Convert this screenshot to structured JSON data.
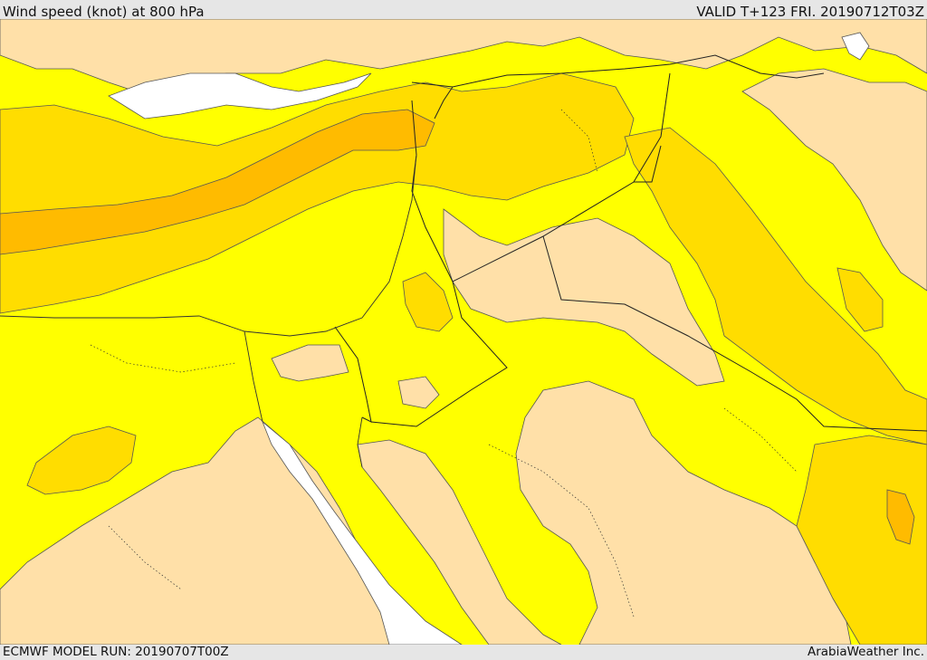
{
  "header": {
    "title": "Wind speed (knot) at 800 hPa",
    "valid": "VALID T+123 FRI. 20190712T03Z"
  },
  "footer": {
    "model_run": "ECMWF MODEL RUN: 20190707T00Z",
    "credit": "ArabiaWeather Inc."
  },
  "map": {
    "variable": "wind speed",
    "level": "800 hPa",
    "colors": {
      "sea_calm": "#ffffff",
      "light": "#ffe0a8",
      "moderate": "#ffff00",
      "fresh": "#ffdd00",
      "strong": "#ffbb00"
    }
  }
}
